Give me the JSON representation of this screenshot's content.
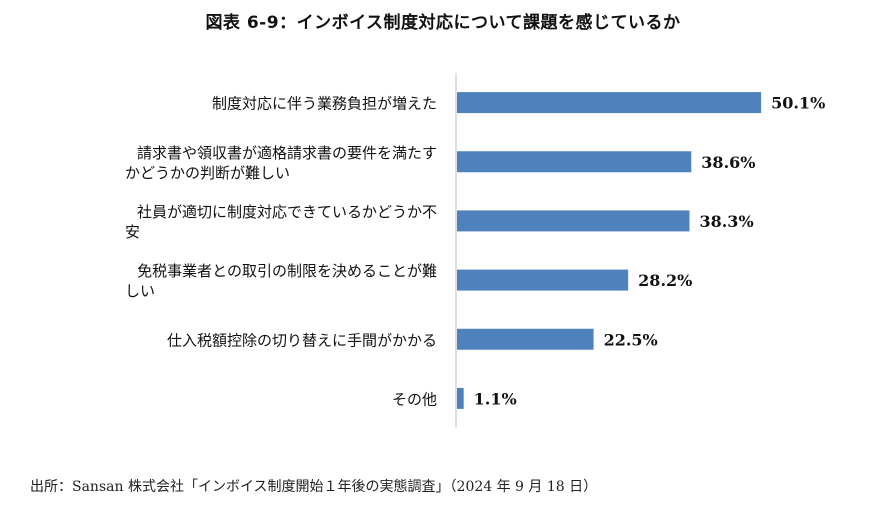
{
  "title": "図表 6-9：インボイス制度対応について課題を感じているか",
  "source": "出所：Sansan 株式会社「インボイス制度開始１年後の実態調査」（2024 年 9 月 18 日）",
  "chart_data": {
    "type": "bar",
    "orientation": "horizontal",
    "categories": [
      [
        "制度対応に伴う業務負担が増えた"
      ],
      [
        "請求書や領収書が適格請求書の要件を満たす",
        "かどうかの判断が難しい"
      ],
      [
        "社員が適切に制度対応できているかどうか不",
        "安"
      ],
      [
        "免税事業者との取引の制限を決めることが難",
        "しい"
      ],
      [
        "仕入税額控除の切り替えに手間がかかる"
      ],
      [
        "その他"
      ]
    ],
    "values": [
      50.1,
      38.6,
      38.3,
      28.2,
      22.5,
      1.1
    ],
    "value_labels": [
      "50.1%",
      "38.6%",
      "38.3%",
      "28.2%",
      "22.5%",
      "1.1%"
    ],
    "xlim": [
      0,
      60
    ],
    "bar_color": "#4f81bd",
    "axis_color": "#bfbfbf",
    "grid": false,
    "legend": "none"
  }
}
